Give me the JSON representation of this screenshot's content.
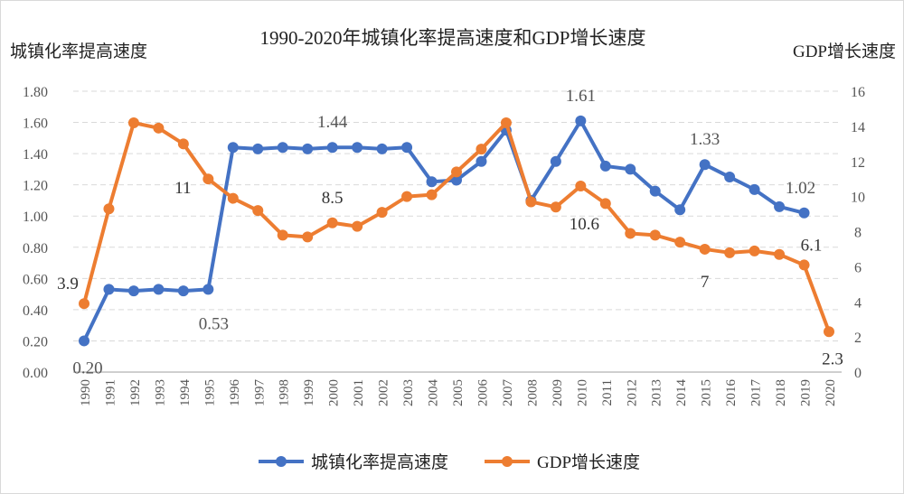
{
  "chart_data": {
    "type": "line",
    "title": "1990-2020年城镇化率提高速度和GDP增长速度",
    "ylabel_left": "城镇化率提高速度",
    "ylabel_right": "GDP增长速度",
    "ylim_left": [
      0,
      1.8
    ],
    "ylim_right": [
      0,
      16
    ],
    "yticks_left": [
      "0.00",
      "0.20",
      "0.40",
      "0.60",
      "0.80",
      "1.00",
      "1.20",
      "1.40",
      "1.60",
      "1.80"
    ],
    "yticks_right": [
      "0",
      "2",
      "4",
      "6",
      "8",
      "10",
      "12",
      "14",
      "16"
    ],
    "grid": true,
    "legend_position": "bottom",
    "x": [
      "1990",
      "1991",
      "1992",
      "1993",
      "1994",
      "1995",
      "1996",
      "1997",
      "1998",
      "1999",
      "2000",
      "2001",
      "2002",
      "2003",
      "2004",
      "2005",
      "2006",
      "2007",
      "2008",
      "2009",
      "2010",
      "2011",
      "2012",
      "2013",
      "2014",
      "2015",
      "2016",
      "2017",
      "2018",
      "2019",
      "2020"
    ],
    "series": [
      {
        "name": "城镇化率提高速度",
        "axis": "left",
        "color": "#4472C4",
        "values": [
          0.2,
          0.53,
          0.52,
          0.53,
          0.52,
          0.53,
          1.44,
          1.43,
          1.44,
          1.43,
          1.44,
          1.44,
          1.43,
          1.44,
          1.22,
          1.23,
          1.35,
          1.55,
          1.1,
          1.35,
          1.61,
          1.32,
          1.3,
          1.16,
          1.04,
          1.33,
          1.25,
          1.17,
          1.06,
          1.02,
          null
        ],
        "labels": [
          {
            "x": "1990",
            "text": "0.20"
          },
          {
            "x": "1995",
            "text": "0.53"
          },
          {
            "x": "2000",
            "text": "1.44"
          },
          {
            "x": "2010",
            "text": "1.61"
          },
          {
            "x": "2015",
            "text": "1.33"
          },
          {
            "x": "2019",
            "text": "1.02"
          }
        ]
      },
      {
        "name": "GDP增长速度",
        "axis": "right",
        "color": "#ED7D31",
        "values": [
          3.9,
          9.3,
          14.2,
          13.9,
          13.0,
          11.0,
          9.9,
          9.2,
          7.8,
          7.7,
          8.5,
          8.3,
          9.1,
          10.0,
          10.1,
          11.4,
          12.7,
          14.2,
          9.7,
          9.4,
          10.6,
          9.6,
          7.9,
          7.8,
          7.4,
          7.0,
          6.8,
          6.9,
          6.7,
          6.1,
          2.3
        ],
        "labels": [
          {
            "x": "1990",
            "text": "3.9"
          },
          {
            "x": "1995",
            "text": "11"
          },
          {
            "x": "2000",
            "text": "8.5"
          },
          {
            "x": "2010",
            "text": "10.6"
          },
          {
            "x": "2015",
            "text": "7"
          },
          {
            "x": "2019",
            "text": "6.1"
          },
          {
            "x": "2020",
            "text": "2.3"
          }
        ]
      }
    ]
  }
}
